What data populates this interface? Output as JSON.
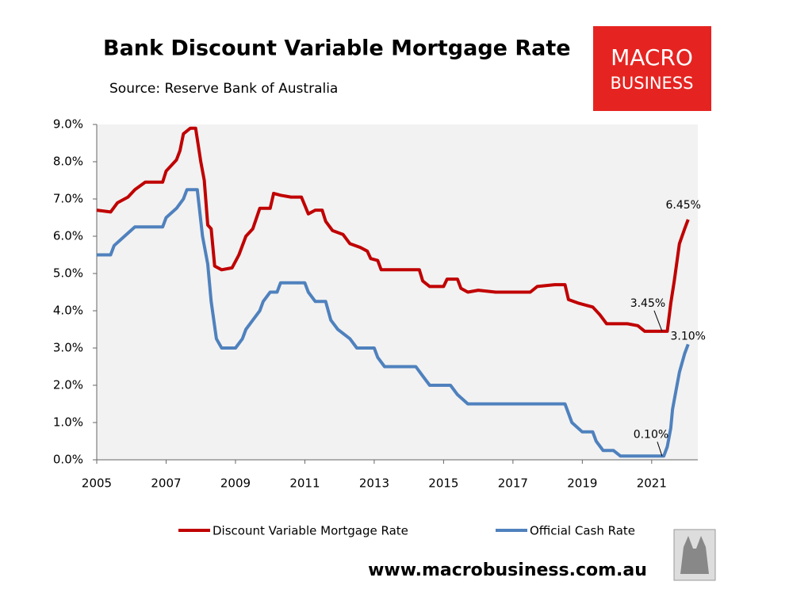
{
  "chart_data": {
    "type": "line",
    "title": "Bank Discount Variable Mortgage Rate",
    "subtitle": "Source: Reserve Bank of Australia",
    "brand": {
      "lines": [
        "MACRO",
        "BUSINESS"
      ],
      "url": "www.macrobusiness.com.au"
    },
    "xlim": [
      2005,
      2022.33
    ],
    "xticks": [
      2005,
      2007,
      2009,
      2011,
      2013,
      2015,
      2017,
      2019,
      2021
    ],
    "ylim": [
      0,
      9
    ],
    "yticks": [
      {
        "value": 0,
        "label": "0.0%"
      },
      {
        "value": 1,
        "label": "1.0%"
      },
      {
        "value": 2,
        "label": "2.0%"
      },
      {
        "value": 3,
        "label": "3.0%"
      },
      {
        "value": 4,
        "label": "4.0%"
      },
      {
        "value": 5,
        "label": "5.0%"
      },
      {
        "value": 6,
        "label": "6.0%"
      },
      {
        "value": 7,
        "label": "7.0%"
      },
      {
        "value": 8,
        "label": "8.0%"
      },
      {
        "value": 9,
        "label": "9.0%"
      }
    ],
    "grid": false,
    "legend": "bottom",
    "series": [
      {
        "name": "Discount Variable Mortgage Rate",
        "color": "#c00000",
        "x": [
          2005.0,
          2005.4,
          2005.6,
          2005.9,
          2006.1,
          2006.4,
          2006.9,
          2007.0,
          2007.3,
          2007.4,
          2007.5,
          2007.7,
          2007.85,
          2008.0,
          2008.1,
          2008.2,
          2008.3,
          2008.4,
          2008.6,
          2008.9,
          2009.1,
          2009.3,
          2009.5,
          2009.7,
          2010.0,
          2010.1,
          2010.3,
          2010.6,
          2010.9,
          2011.1,
          2011.3,
          2011.5,
          2011.6,
          2011.8,
          2012.1,
          2012.3,
          2012.6,
          2012.8,
          2012.9,
          2013.1,
          2013.2,
          2013.6,
          2014.3,
          2014.4,
          2014.6,
          2015.0,
          2015.1,
          2015.4,
          2015.5,
          2015.7,
          2016.0,
          2016.5,
          2017.0,
          2017.5,
          2017.7,
          2018.2,
          2018.5,
          2018.6,
          2018.9,
          2019.3,
          2019.5,
          2019.7,
          2020.3,
          2020.6,
          2020.8,
          2021.3,
          2021.45,
          2021.55,
          2021.65,
          2021.8,
          2021.95,
          2022.05
        ],
        "values": [
          6.7,
          6.65,
          6.9,
          7.05,
          7.25,
          7.45,
          7.45,
          7.75,
          8.05,
          8.3,
          8.75,
          8.9,
          8.9,
          8.0,
          7.5,
          6.3,
          6.2,
          5.2,
          5.1,
          5.15,
          5.5,
          6.0,
          6.2,
          6.75,
          6.75,
          7.15,
          7.1,
          7.05,
          7.05,
          6.6,
          6.7,
          6.7,
          6.4,
          6.15,
          6.05,
          5.8,
          5.7,
          5.6,
          5.4,
          5.35,
          5.1,
          5.1,
          5.1,
          4.8,
          4.65,
          4.65,
          4.85,
          4.85,
          4.6,
          4.5,
          4.55,
          4.5,
          4.5,
          4.5,
          4.65,
          4.7,
          4.7,
          4.3,
          4.2,
          4.1,
          3.9,
          3.65,
          3.65,
          3.6,
          3.45,
          3.45,
          3.45,
          4.2,
          4.8,
          5.8,
          6.2,
          6.45
        ]
      },
      {
        "name": "Official Cash Rate",
        "color": "#4f81bd",
        "x": [
          2005.0,
          2005.4,
          2005.5,
          2005.8,
          2006.1,
          2006.9,
          2007.0,
          2007.3,
          2007.5,
          2007.6,
          2007.9,
          2008.05,
          2008.2,
          2008.3,
          2008.45,
          2008.6,
          2009.0,
          2009.2,
          2009.3,
          2009.5,
          2009.7,
          2009.8,
          2010.0,
          2010.2,
          2010.3,
          2011.0,
          2011.1,
          2011.3,
          2011.6,
          2011.75,
          2011.95,
          2012.3,
          2012.5,
          2013.0,
          2013.1,
          2013.3,
          2014.2,
          2014.4,
          2014.6,
          2015.2,
          2015.4,
          2015.7,
          2018.5,
          2018.7,
          2019.0,
          2019.3,
          2019.4,
          2019.6,
          2019.9,
          2020.1,
          2021.35,
          2021.45,
          2021.55,
          2021.6,
          2021.7,
          2021.8,
          2021.95,
          2022.05
        ],
        "values": [
          5.5,
          5.5,
          5.75,
          6.0,
          6.25,
          6.25,
          6.5,
          6.75,
          7.0,
          7.25,
          7.25,
          6.0,
          5.25,
          4.25,
          3.25,
          3.0,
          3.0,
          3.25,
          3.5,
          3.75,
          4.0,
          4.25,
          4.5,
          4.5,
          4.75,
          4.75,
          4.5,
          4.25,
          4.25,
          3.75,
          3.5,
          3.25,
          3.0,
          3.0,
          2.75,
          2.5,
          2.5,
          2.25,
          2.0,
          2.0,
          1.75,
          1.5,
          1.5,
          1.0,
          0.75,
          0.75,
          0.5,
          0.25,
          0.25,
          0.1,
          0.1,
          0.35,
          0.85,
          1.35,
          1.85,
          2.35,
          2.85,
          3.1
        ]
      }
    ],
    "annotations": [
      {
        "text": "6.45%",
        "x": 2022.05,
        "y": 6.45
      },
      {
        "text": "3.45%",
        "x": 2021.3,
        "y": 3.45
      },
      {
        "text": "3.10%",
        "x": 2022.05,
        "y": 3.1
      },
      {
        "text": "0.10%",
        "x": 2021.3,
        "y": 0.1
      }
    ]
  }
}
